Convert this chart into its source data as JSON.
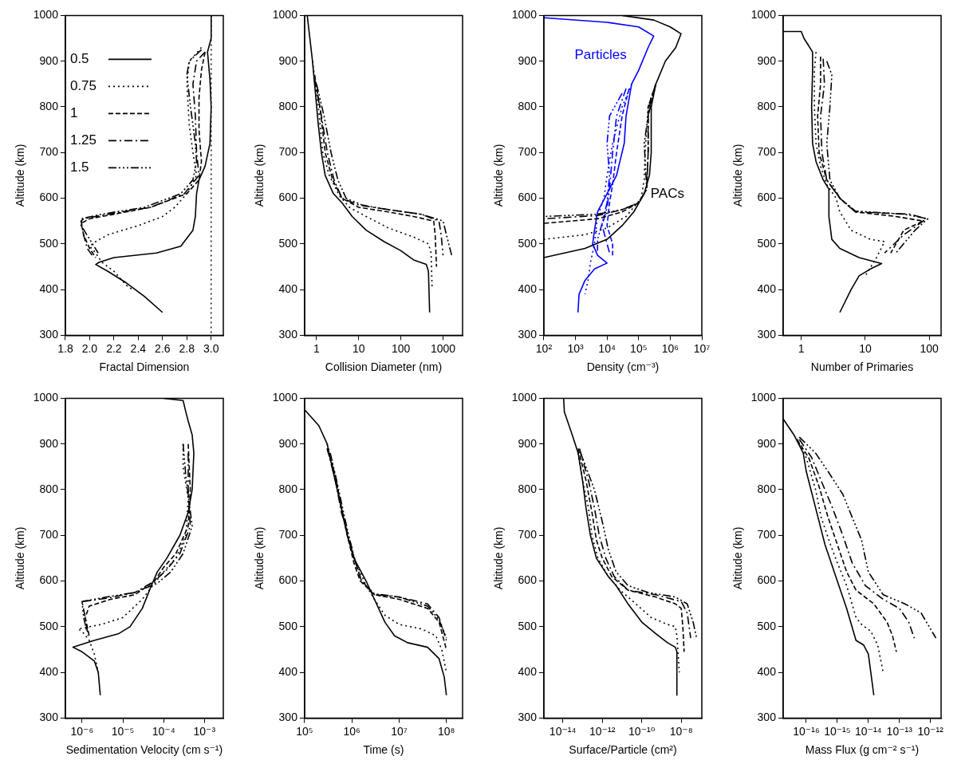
{
  "chart_data": [
    {
      "type": "line",
      "xlabel": "Fractal Dimension",
      "ylabel": "Altitude (km)",
      "xlim": [
        1.8,
        3.1
      ],
      "ylim": [
        300,
        1000
      ],
      "xticks": [
        1.8,
        {
          "value": 2,
          "label": "2.0"
        },
        2.2,
        2.4,
        2.6,
        2.8,
        {
          "value": 3,
          "label": "3.0"
        }
      ],
      "yticks": [
        300,
        400,
        500,
        600,
        700,
        800,
        900,
        1000
      ],
      "grid": false,
      "legend": "top left",
      "ref_lines": [
        {
          "axis": "x",
          "value": 3,
          "line_style": "dotted",
          "color": "#000000"
        }
      ],
      "series": [
        {
          "name": "0.5",
          "color": "#000000",
          "line_style": "solid",
          "x": [
            3.0,
            3.0,
            2.97,
            2.99,
            3.0,
            2.99,
            2.95,
            2.9,
            2.88,
            2.87,
            2.85,
            2.75,
            2.55,
            2.2,
            2.08,
            2.05,
            2.15,
            2.3,
            2.45,
            2.6
          ],
          "values": [
            1000,
            950,
            920,
            860,
            800,
            720,
            670,
            640,
            610,
            560,
            530,
            495,
            480,
            470,
            460,
            455,
            440,
            415,
            385,
            350
          ]
        },
        {
          "name": "0.75",
          "color": "#000000",
          "line_style": "dotted",
          "x": [
            2.92,
            2.82,
            2.8,
            2.82,
            2.85,
            2.88,
            2.8,
            2.7,
            2.6,
            2.4,
            2.15,
            2.05,
            2.0,
            2.05,
            2.1,
            2.2,
            2.3,
            2.35
          ],
          "values": [
            930,
            900,
            850,
            760,
            700,
            650,
            610,
            580,
            560,
            540,
            520,
            505,
            495,
            480,
            460,
            440,
            410,
            400
          ]
        },
        {
          "name": "1",
          "color": "#000000",
          "line_style": "dashed",
          "x": [
            2.95,
            2.92,
            2.9,
            2.9,
            2.92,
            2.9,
            2.8,
            2.5,
            2.2,
            2.0,
            1.93,
            1.95,
            2.0,
            2.05
          ],
          "values": [
            920,
            880,
            820,
            750,
            680,
            640,
            610,
            580,
            565,
            555,
            545,
            520,
            490,
            470
          ]
        },
        {
          "name": "1.25",
          "color": "#000000",
          "line_style": "dashdot",
          "x": [
            2.95,
            2.88,
            2.85,
            2.87,
            2.88,
            2.9,
            2.78,
            2.5,
            2.15,
            1.95,
            1.93,
            1.95,
            1.98,
            2.02
          ],
          "values": [
            920,
            900,
            850,
            780,
            700,
            650,
            610,
            580,
            565,
            555,
            550,
            520,
            490,
            475
          ]
        },
        {
          "name": "1.5",
          "color": "#000000",
          "line_style": "dashdotdotdot",
          "x": [
            2.92,
            2.82,
            2.8,
            2.83,
            2.87,
            2.88,
            2.85,
            2.75,
            2.45,
            2.1,
            1.93,
            1.93,
            2.0,
            2.07
          ],
          "values": [
            925,
            900,
            870,
            800,
            720,
            680,
            640,
            610,
            580,
            565,
            555,
            540,
            510,
            480
          ]
        }
      ]
    },
    {
      "type": "line",
      "xlabel": "Collision Diameter (nm)",
      "ylabel": "Altitude (km)",
      "log": "x",
      "xlim": [
        0.52,
        2900
      ],
      "ylim": [
        300,
        1000
      ],
      "xticks": [
        1,
        10,
        100,
        1000
      ],
      "yticks": [
        300,
        400,
        500,
        600,
        700,
        800,
        900,
        1000
      ],
      "grid": false,
      "series": [
        {
          "color": "#000000",
          "line_style": "solid",
          "x": [
            0.6,
            0.8,
            1.1,
            1.3,
            1.6,
            2.5,
            4,
            7,
            15,
            40,
            100,
            200,
            400,
            450,
            480
          ],
          "values": [
            1000,
            900,
            760,
            700,
            650,
            610,
            590,
            560,
            530,
            505,
            485,
            465,
            455,
            440,
            350
          ]
        },
        {
          "color": "#000000",
          "line_style": "dotted",
          "x": [
            0.8,
            1.1,
            1.4,
            2,
            3.5,
            6,
            15,
            50,
            200,
            450,
            520,
            550
          ],
          "values": [
            900,
            800,
            700,
            650,
            605,
            580,
            560,
            535,
            515,
            500,
            480,
            400
          ]
        },
        {
          "color": "#000000",
          "line_style": "dashed",
          "x": [
            0.9,
            1.2,
            1.6,
            2.4,
            4,
            10,
            50,
            200,
            600,
            650,
            700
          ],
          "values": [
            870,
            800,
            700,
            640,
            600,
            580,
            570,
            560,
            550,
            520,
            450
          ]
        },
        {
          "color": "#000000",
          "line_style": "dashdot",
          "x": [
            0.9,
            1.3,
            1.8,
            2.6,
            4,
            10,
            50,
            300,
            800,
            900,
            1000
          ],
          "values": [
            860,
            780,
            700,
            640,
            600,
            585,
            575,
            565,
            550,
            520,
            475
          ]
        },
        {
          "color": "#000000",
          "line_style": "dashdotdotdot",
          "x": [
            1,
            1.5,
            2.2,
            3.2,
            5,
            12,
            50,
            300,
            1000,
            1200,
            1600
          ],
          "values": [
            850,
            780,
            700,
            640,
            600,
            585,
            575,
            565,
            550,
            520,
            475
          ]
        }
      ]
    },
    {
      "type": "line",
      "xlabel": "Density (cm⁻³)",
      "ylabel": "Altitude (km)",
      "log": "x",
      "xlim": [
        100,
        10000000
      ],
      "ylim": [
        300,
        1000
      ],
      "xticks": [
        {
          "value": 100,
          "label": "10²"
        },
        {
          "value": 1000,
          "label": "10³"
        },
        {
          "value": 10000,
          "label": "10⁴"
        },
        {
          "value": 100000,
          "label": "10⁵"
        },
        {
          "value": 1000000,
          "label": "10⁶"
        },
        {
          "value": 10000000,
          "label": "10⁷"
        }
      ],
      "yticks": [
        300,
        400,
        500,
        600,
        700,
        800,
        900,
        1000
      ],
      "grid": false,
      "annotations": [
        {
          "text": "Particles",
          "x": 300000,
          "y": 955
        },
        {
          "text": "PACs",
          "x": 150000,
          "y": 610
        }
      ],
      "series": [
        {
          "color": "#000000",
          "line_style": "solid",
          "x": [
            30000,
            300000,
            1000000,
            2200000,
            1500000,
            700000,
            350000,
            250000,
            250000,
            220000,
            150000,
            70000,
            30000,
            10000,
            2000,
            100
          ],
          "values": [
            1000,
            990,
            975,
            960,
            930,
            900,
            850,
            800,
            700,
            650,
            610,
            570,
            540,
            510,
            490,
            470
          ]
        },
        {
          "color": "#000000",
          "line_style": "dotted",
          "x": [
            350000,
            200000,
            160000,
            150000,
            120000,
            40000,
            10000,
            2000,
            100
          ],
          "values": [
            850,
            800,
            700,
            640,
            600,
            560,
            535,
            520,
            510
          ]
        },
        {
          "color": "#000000",
          "line_style": "dashed",
          "x": [
            350000,
            200000,
            200000,
            180000,
            100000,
            30000,
            5000,
            100
          ],
          "values": [
            850,
            800,
            700,
            620,
            590,
            570,
            555,
            545
          ]
        },
        {
          "color": "#000000",
          "line_style": "dashdot",
          "x": [
            350000,
            200000,
            200000,
            180000,
            100000,
            30000,
            5000,
            100
          ],
          "values": [
            850,
            790,
            700,
            620,
            590,
            575,
            562,
            555
          ]
        },
        {
          "color": "#000000",
          "line_style": "dashdotdotdot",
          "x": [
            350000,
            200000,
            150000,
            180000,
            100000,
            30000,
            5000,
            100
          ],
          "values": [
            850,
            780,
            720,
            620,
            590,
            575,
            565,
            560
          ]
        },
        {
          "color": "#0000ff",
          "line_style": "solid",
          "x": [
            100,
            10000,
            100000,
            300000,
            200000,
            100000,
            60000,
            40000,
            35000,
            20000,
            10000,
            5000,
            4000,
            3500,
            5000,
            10000,
            4000,
            2000,
            1300,
            1200
          ],
          "values": [
            995,
            985,
            975,
            955,
            930,
            880,
            850,
            780,
            720,
            650,
            610,
            570,
            530,
            500,
            475,
            458,
            445,
            420,
            390,
            350
          ]
        },
        {
          "color": "#0000ff",
          "line_style": "dotted",
          "x": [
            60000,
            30000,
            15000,
            10000,
            8000,
            5000,
            4000,
            3000,
            2500,
            2000
          ],
          "values": [
            850,
            800,
            720,
            650,
            600,
            560,
            500,
            460,
            420,
            390
          ]
        },
        {
          "color": "#0000ff",
          "line_style": "dashed",
          "x": [
            50000,
            30000,
            20000,
            15000,
            12000,
            10000,
            15000,
            15000
          ],
          "values": [
            840,
            780,
            700,
            630,
            590,
            540,
            500,
            475
          ]
        },
        {
          "color": "#0000ff",
          "line_style": "dashdot",
          "x": [
            40000,
            20000,
            15000,
            12000,
            10000,
            7000,
            10000,
            12000
          ],
          "values": [
            840,
            780,
            700,
            620,
            580,
            540,
            500,
            480
          ]
        },
        {
          "color": "#0000ff",
          "line_style": "dashdotdotdot",
          "x": [
            30000,
            12000,
            10000,
            12000,
            10000,
            7000,
            5000,
            5000
          ],
          "values": [
            830,
            780,
            720,
            650,
            590,
            545,
            510,
            485
          ]
        }
      ]
    },
    {
      "type": "line",
      "xlabel": "Number of Primaries",
      "ylabel": "Altitude (km)",
      "log": "x",
      "xlim": [
        0.52,
        153
      ],
      "ylim": [
        300,
        1000
      ],
      "xticks": [
        1,
        10,
        100
      ],
      "yticks": [
        300,
        400,
        500,
        600,
        700,
        800,
        900,
        1000
      ],
      "grid": false,
      "series": [
        {
          "color": "#000000",
          "line_style": "solid",
          "x": [
            0.52,
            1,
            1.1,
            1.5,
            1.5,
            1.45,
            1.5,
            1.7,
            2.2,
            2.7,
            2.7,
            3,
            4,
            8,
            18,
            12,
            8,
            6,
            4
          ],
          "values": [
            965,
            965,
            950,
            920,
            880,
            800,
            720,
            680,
            640,
            620,
            560,
            510,
            490,
            470,
            457,
            445,
            430,
            400,
            350
          ]
        },
        {
          "color": "#000000",
          "line_style": "dotted",
          "x": [
            1.7,
            1.6,
            1.6,
            1.7,
            2,
            2.5,
            3.5,
            4,
            6,
            12,
            20,
            15,
            10
          ],
          "values": [
            920,
            880,
            800,
            720,
            670,
            630,
            600,
            570,
            530,
            510,
            505,
            470,
            430
          ]
        },
        {
          "color": "#000000",
          "line_style": "dashed",
          "x": [
            2,
            2,
            1.8,
            1.9,
            2.5,
            4,
            7,
            30,
            80,
            40,
            25
          ],
          "values": [
            910,
            850,
            780,
            700,
            640,
            600,
            570,
            560,
            550,
            530,
            480
          ]
        },
        {
          "color": "#000000",
          "line_style": "dashdot",
          "x": [
            2.2,
            2.3,
            2,
            2.1,
            2.5,
            4,
            7,
            50,
            90,
            40,
            20
          ],
          "values": [
            905,
            850,
            780,
            700,
            640,
            600,
            570,
            565,
            555,
            520,
            480
          ]
        },
        {
          "color": "#000000",
          "line_style": "dashdotdotdot",
          "x": [
            2.5,
            3,
            2.8,
            2.5,
            2.8,
            4,
            7,
            40,
            95,
            60,
            30
          ],
          "values": [
            900,
            870,
            800,
            720,
            640,
            600,
            572,
            565,
            555,
            530,
            480
          ]
        }
      ]
    },
    {
      "type": "line",
      "xlabel": "Sedimentation Velocity (cm s⁻¹)",
      "ylabel": "Altitude (km)",
      "log": "x",
      "xlim": [
        3.9e-07,
        0.0029
      ],
      "ylim": [
        300,
        1000
      ],
      "xticks": [
        {
          "value": 1e-06,
          "label": "10⁻⁶"
        },
        {
          "value": 1e-05,
          "label": "10⁻⁵"
        },
        {
          "value": 0.0001,
          "label": "10⁻⁴"
        },
        {
          "value": 0.001,
          "label": "10⁻³"
        }
      ],
      "yticks": [
        300,
        400,
        500,
        600,
        700,
        800,
        900,
        1000
      ],
      "grid": false,
      "series": [
        {
          "color": "#000000",
          "line_style": "solid",
          "x": [
            0.0001,
            0.0003,
            0.00035,
            0.0004,
            0.0005,
            0.00055,
            0.0005,
            0.0004,
            0.00025,
            0.00012,
            7e-05,
            5e-05,
            3e-05,
            1.5e-05,
            8e-06,
            2e-06,
            6e-07,
            1e-06,
            2e-06,
            2.5e-06,
            2.8e-06
          ],
          "values": [
            1000,
            995,
            970,
            950,
            920,
            880,
            800,
            750,
            700,
            650,
            620,
            590,
            540,
            500,
            485,
            470,
            455,
            445,
            425,
            400,
            350
          ]
        },
        {
          "color": "#000000",
          "line_style": "dotted",
          "x": [
            0.0003,
            0.0003,
            0.0004,
            0.00035,
            0.0002,
            8e-05,
            3e-05,
            1e-05,
            3e-06,
            8e-07,
            1e-06,
            1.5e-06,
            2e-06,
            2.5e-06
          ],
          "values": [
            900,
            850,
            780,
            700,
            650,
            610,
            560,
            520,
            505,
            495,
            490,
            470,
            440,
            400
          ]
        },
        {
          "color": "#000000",
          "line_style": "dashed",
          "x": [
            0.0004,
            0.00045,
            0.0004,
            0.0002,
            0.0001,
            6e-05,
            2e-05,
            5e-06,
            1.5e-06,
            1.2e-06,
            1.5e-06
          ],
          "values": [
            900,
            800,
            720,
            660,
            630,
            600,
            570,
            560,
            545,
            520,
            480
          ]
        },
        {
          "color": "#000000",
          "line_style": "dashdot",
          "x": [
            0.0004,
            0.0004,
            0.00045,
            0.00025,
            0.00012,
            6e-05,
            2e-05,
            4e-06,
            1e-06,
            1.2e-06,
            1.4e-06
          ],
          "values": [
            880,
            800,
            720,
            660,
            625,
            600,
            575,
            562,
            555,
            520,
            480
          ]
        },
        {
          "color": "#000000",
          "line_style": "dashdotdotdot",
          "x": [
            0.0003,
            0.00035,
            0.0005,
            0.0003,
            0.00015,
            7e-05,
            2e-05,
            4e-06,
            1e-06,
            1.1e-06,
            1.3e-06
          ],
          "values": [
            900,
            830,
            720,
            660,
            620,
            595,
            575,
            565,
            555,
            520,
            490
          ]
        }
      ]
    },
    {
      "type": "line",
      "xlabel": "Time (s)",
      "ylabel": "Altitude (km)",
      "log": "x",
      "xlim": [
        100000,
        220000000
      ],
      "ylim": [
        300,
        1000
      ],
      "xticks": [
        {
          "value": 100000,
          "label": "10⁵"
        },
        {
          "value": 1000000,
          "label": "10⁶"
        },
        {
          "value": 10000000,
          "label": "10⁷"
        },
        {
          "value": 100000000,
          "label": "10⁸"
        }
      ],
      "yticks": [
        300,
        400,
        500,
        600,
        700,
        800,
        900,
        1000
      ],
      "grid": false,
      "series": [
        {
          "color": "#000000",
          "line_style": "solid",
          "x": [
            100000,
            200000,
            300000,
            400000,
            600000,
            800000,
            1100000,
            2000000,
            3000000,
            5000000,
            8000000,
            15000000,
            40000000,
            70000000,
            90000000,
            100000000
          ],
          "values": [
            975,
            940,
            900,
            840,
            760,
            700,
            650,
            600,
            560,
            510,
            480,
            465,
            455,
            430,
            390,
            350
          ]
        },
        {
          "color": "#000000",
          "line_style": "dotted",
          "x": [
            300000,
            400000,
            600000,
            800000,
            1100000,
            2000000,
            3000000,
            5000000,
            10000000,
            30000000,
            60000000,
            80000000,
            100000000
          ],
          "values": [
            900,
            850,
            760,
            700,
            650,
            590,
            560,
            525,
            505,
            495,
            480,
            450,
            400
          ]
        },
        {
          "color": "#000000",
          "line_style": "dashed",
          "x": [
            300000,
            450000,
            600000,
            800000,
            1100000,
            1500000,
            3000000,
            10000000,
            40000000,
            70000000,
            100000000
          ],
          "values": [
            890,
            830,
            760,
            700,
            640,
            600,
            570,
            560,
            540,
            510,
            450
          ]
        },
        {
          "color": "#000000",
          "line_style": "dashdot",
          "x": [
            300000,
            450000,
            600000,
            900000,
            1200000,
            1600000,
            3000000,
            10000000,
            40000000,
            70000000,
            100000000
          ],
          "values": [
            890,
            820,
            750,
            690,
            640,
            600,
            570,
            565,
            550,
            520,
            470
          ]
        },
        {
          "color": "#000000",
          "line_style": "dashdotdotdot",
          "x": [
            350000,
            500000,
            700000,
            900000,
            1200000,
            1600000,
            3000000,
            10000000,
            40000000,
            70000000,
            100000000
          ],
          "values": [
            880,
            810,
            740,
            690,
            640,
            600,
            572,
            565,
            545,
            515,
            475
          ]
        }
      ]
    },
    {
      "type": "line",
      "xlabel": "Surface/Particle (cm²)",
      "ylabel": "Altitude (km)",
      "log": "x",
      "xlim": [
        1.1e-15,
        1.1e-07
      ],
      "ylim": [
        300,
        1000
      ],
      "xticks": [
        {
          "value": 1e-14,
          "label": "10⁻¹⁴"
        },
        {
          "value": 1e-12,
          "label": "10⁻¹²"
        },
        {
          "value": 1e-10,
          "label": "10⁻¹⁰"
        },
        {
          "value": 1e-08,
          "label": "10⁻⁸"
        }
      ],
      "yticks": [
        300,
        400,
        500,
        600,
        700,
        800,
        900,
        1000
      ],
      "grid": false,
      "series": [
        {
          "color": "#000000",
          "line_style": "solid",
          "x": [
            1.1e-14,
            1.2e-14,
            3e-14,
            6e-14,
            1e-13,
            1.5e-13,
            2.5e-13,
            5e-13,
            2e-12,
            5e-12,
            2e-11,
            1e-10,
            5e-10,
            2e-09,
            5e-09,
            6e-09,
            6e-09
          ],
          "values": [
            1000,
            970,
            920,
            880,
            820,
            760,
            700,
            650,
            610,
            590,
            550,
            510,
            485,
            465,
            455,
            445,
            350
          ]
        },
        {
          "color": "#000000",
          "line_style": "dotted",
          "x": [
            6e-14,
            1e-13,
            2e-13,
            3e-13,
            6e-13,
            2e-12,
            8e-12,
            5e-11,
            3e-10,
            2e-09,
            5e-09,
            6e-09,
            8e-09
          ],
          "values": [
            880,
            820,
            760,
            700,
            650,
            610,
            580,
            550,
            520,
            505,
            500,
            480,
            400
          ]
        },
        {
          "color": "#000000",
          "line_style": "dashed",
          "x": [
            6e-14,
            1.5e-13,
            3e-13,
            5e-13,
            1e-12,
            3e-12,
            2e-11,
            5e-10,
            5e-09,
            1e-08,
            1.2e-08,
            1.4e-08
          ],
          "values": [
            890,
            820,
            750,
            690,
            650,
            610,
            580,
            565,
            550,
            540,
            500,
            445
          ]
        },
        {
          "color": "#000000",
          "line_style": "dashdot",
          "x": [
            7e-14,
            2e-13,
            4e-13,
            7e-13,
            1.5e-12,
            4e-12,
            2e-11,
            5e-10,
            1e-08,
            2e-08,
            3e-08
          ],
          "values": [
            890,
            820,
            760,
            700,
            650,
            610,
            580,
            570,
            555,
            530,
            475
          ]
        },
        {
          "color": "#000000",
          "line_style": "dashdotdotdot",
          "x": [
            8e-14,
            4e-13,
            1e-12,
            2e-12,
            5e-12,
            2e-11,
            2e-10,
            5e-09,
            2e-08,
            4e-08,
            6e-08
          ],
          "values": [
            880,
            800,
            730,
            670,
            620,
            590,
            575,
            565,
            550,
            510,
            475
          ]
        }
      ]
    },
    {
      "type": "line",
      "xlabel": "Mass Flux (g cm⁻² s⁻¹)",
      "ylabel": "Altitude (km)",
      "log": "x",
      "xlim": [
        1.8e-17,
        2.2e-12
      ],
      "ylim": [
        300,
        1000
      ],
      "xticks": [
        {
          "value": 1e-16,
          "label": "10⁻¹⁶"
        },
        {
          "value": 1e-15,
          "label": "10⁻¹⁵"
        },
        {
          "value": 1e-14,
          "label": "10⁻¹⁴"
        },
        {
          "value": 1e-13,
          "label": "10⁻¹³"
        },
        {
          "value": 1e-12,
          "label": "10⁻¹²"
        }
      ],
      "yticks": [
        300,
        400,
        500,
        600,
        700,
        800,
        900,
        1000
      ],
      "grid": false,
      "series": [
        {
          "color": "#000000",
          "line_style": "solid",
          "x": [
            1.8e-17,
            4e-17,
            8e-17,
            1e-16,
            2e-16,
            4e-16,
            1e-15,
            2e-15,
            4e-15,
            7e-15,
            1e-14,
            1.2e-14,
            1.5e-14
          ],
          "values": [
            955,
            920,
            880,
            840,
            760,
            680,
            600,
            540,
            470,
            460,
            440,
            400,
            350
          ]
        },
        {
          "color": "#000000",
          "line_style": "dotted",
          "x": [
            5e-17,
            1e-16,
            2e-16,
            3e-16,
            6e-16,
            1e-15,
            2e-15,
            4e-15,
            6e-15,
            1.2e-14,
            2e-14,
            3e-14
          ],
          "values": [
            910,
            870,
            800,
            740,
            680,
            640,
            590,
            520,
            505,
            490,
            460,
            400
          ]
        },
        {
          "color": "#000000",
          "line_style": "dashed",
          "x": [
            5e-17,
            1.2e-16,
            2.5e-16,
            5e-16,
            1e-15,
            2e-15,
            4e-15,
            1.5e-14,
            4e-14,
            6e-14,
            8e-14
          ],
          "values": [
            910,
            870,
            810,
            740,
            680,
            620,
            580,
            550,
            510,
            480,
            445
          ]
        },
        {
          "color": "#000000",
          "line_style": "dashdot",
          "x": [
            6e-17,
            1.5e-16,
            3e-16,
            7e-16,
            1.5e-15,
            3e-15,
            8e-15,
            3e-14,
            1e-13,
            2e-13,
            3e-13
          ],
          "values": [
            910,
            870,
            820,
            760,
            700,
            640,
            590,
            560,
            540,
            510,
            475
          ]
        },
        {
          "color": "#000000",
          "line_style": "dashdotdotdot",
          "x": [
            6e-17,
            2e-16,
            5e-16,
            1.5e-15,
            3e-15,
            6e-15,
            1e-14,
            3e-14,
            1.5e-13,
            5e-13,
            1.5e-12
          ],
          "values": [
            915,
            880,
            840,
            790,
            740,
            690,
            620,
            570,
            550,
            530,
            475
          ]
        }
      ]
    }
  ]
}
